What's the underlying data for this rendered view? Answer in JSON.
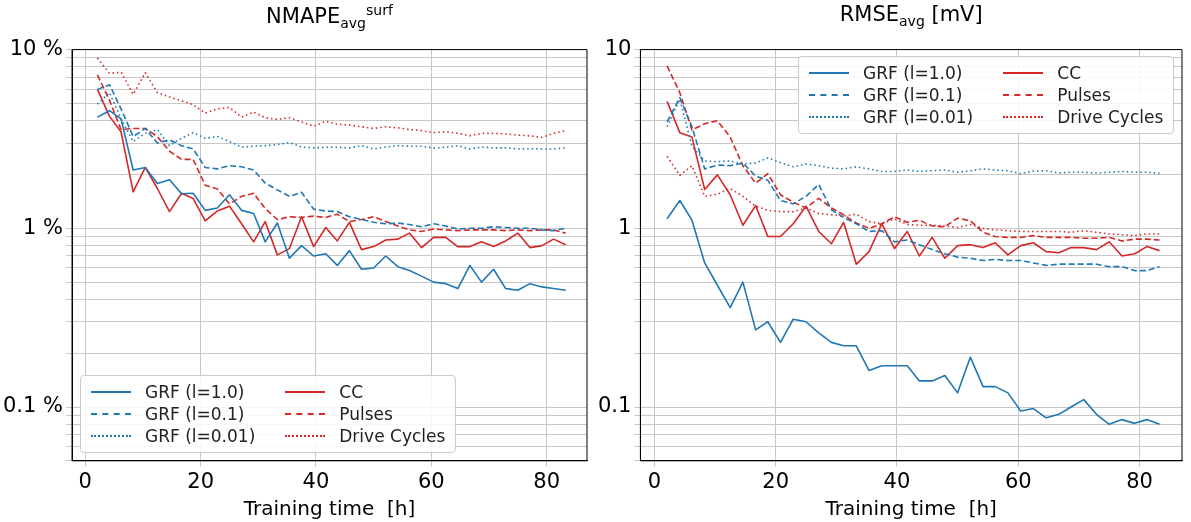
{
  "chart_data": [
    {
      "type": "line",
      "title": "NMAPE$_{avg}$$^{surf}$",
      "xlabel": "Training time  [h]",
      "log": "y",
      "grid": true,
      "legend": "bottom left",
      "x": [
        2.1,
        4.2,
        6.2,
        8.3,
        10.4,
        12.5,
        14.6,
        16.7,
        18.7,
        20.8,
        22.9,
        25.0,
        27.1,
        29.2,
        31.2,
        33.3,
        35.4,
        37.5,
        39.6,
        41.7,
        43.7,
        45.8,
        47.9,
        50.0,
        52.1,
        54.2,
        56.2,
        58.3,
        60.4,
        62.5,
        64.6,
        66.7,
        68.7,
        70.8,
        72.9,
        75.0,
        77.1,
        79.2,
        81.2,
        83.3
      ],
      "xlim": [
        -2.3,
        87
      ],
      "xticks": [
        0,
        20,
        40,
        60,
        80
      ],
      "ylim": [
        0.05,
        10
      ],
      "yticks": [
        {
          "value": 0.05,
          "label": null
        },
        {
          "value": 0.06,
          "label": null
        },
        {
          "value": 0.07,
          "label": null
        },
        {
          "value": 0.08,
          "label": null
        },
        {
          "value": 0.09,
          "label": null
        },
        {
          "value": 0.1,
          "label": "0.1 %"
        },
        {
          "value": 0.2,
          "label": null
        },
        {
          "value": 0.3,
          "label": null
        },
        {
          "value": 0.4,
          "label": null
        },
        {
          "value": 0.5,
          "label": null
        },
        {
          "value": 0.6,
          "label": null
        },
        {
          "value": 0.7,
          "label": null
        },
        {
          "value": 0.8,
          "label": null
        },
        {
          "value": 0.9,
          "label": null
        },
        {
          "value": 1,
          "label": "1 %"
        },
        {
          "value": 2,
          "label": null
        },
        {
          "value": 3,
          "label": null
        },
        {
          "value": 4,
          "label": null
        },
        {
          "value": 5,
          "label": null
        },
        {
          "value": 6,
          "label": null
        },
        {
          "value": 7,
          "label": null
        },
        {
          "value": 8,
          "label": null
        },
        {
          "value": 9,
          "label": null
        },
        {
          "value": 10,
          "label": "10 %"
        }
      ],
      "series": [
        {
          "name": "GRF (l=1.0)",
          "color": "#1f77b4",
          "line_style": "solid",
          "values": [
            4.19,
            4.55,
            4.1,
            2.12,
            2.19,
            1.78,
            1.87,
            1.56,
            1.57,
            1.26,
            1.3,
            1.54,
            1.26,
            1.21,
            0.84,
            1.07,
            0.68,
            0.8,
            0.7,
            0.72,
            0.62,
            0.75,
            0.59,
            0.6,
            0.7,
            0.61,
            0.58,
            0.54,
            0.5,
            0.49,
            0.46,
            0.62,
            0.5,
            0.59,
            0.46,
            0.45,
            0.49,
            0.47,
            0.46,
            0.45
          ]
        },
        {
          "name": "GRF (l=0.1)",
          "color": "#1f77b4",
          "line_style": "dashed",
          "values": [
            5.99,
            6.36,
            4.66,
            3.26,
            3.62,
            3.0,
            3.13,
            2.9,
            2.78,
            2.19,
            2.15,
            2.24,
            2.21,
            2.12,
            1.79,
            1.64,
            1.51,
            1.59,
            1.28,
            1.25,
            1.24,
            1.16,
            1.12,
            1.08,
            1.06,
            1.07,
            1.05,
            1.02,
            1.06,
            1.03,
            0.99,
            1.0,
            1.0,
            1.02,
            1.01,
            1.0,
            1.0,
            0.98,
            0.97,
            1.0
          ]
        },
        {
          "name": "GRF (l=0.01)",
          "color": "#1f77b4",
          "line_style": "dotted",
          "values": [
            4.95,
            5.74,
            4.1,
            3.06,
            3.4,
            3.57,
            2.9,
            3.19,
            3.43,
            3.19,
            3.26,
            3.06,
            2.85,
            2.88,
            2.9,
            2.94,
            3.02,
            2.85,
            2.82,
            2.84,
            2.84,
            2.82,
            2.9,
            2.78,
            2.85,
            2.9,
            2.88,
            2.88,
            2.81,
            2.84,
            2.9,
            2.78,
            2.85,
            2.82,
            2.82,
            2.78,
            2.79,
            2.78,
            2.78,
            2.82
          ]
        },
        {
          "name": "CC",
          "color": "#d62728",
          "line_style": "solid",
          "values": [
            5.99,
            4.23,
            3.47,
            1.6,
            2.19,
            1.67,
            1.24,
            1.57,
            1.47,
            1.1,
            1.25,
            1.33,
            1.06,
            0.84,
            1.09,
            0.71,
            0.77,
            1.16,
            0.79,
            1.01,
            0.85,
            1.08,
            0.76,
            0.79,
            0.86,
            0.87,
            0.94,
            0.78,
            0.89,
            0.89,
            0.79,
            0.79,
            0.84,
            0.79,
            0.85,
            0.94,
            0.78,
            0.8,
            0.87,
            0.81
          ]
        },
        {
          "name": "Pulses",
          "color": "#d62728",
          "line_style": "dashed",
          "values": [
            7.22,
            5.2,
            3.57,
            3.62,
            3.62,
            3.26,
            2.7,
            2.43,
            2.43,
            1.74,
            1.66,
            1.37,
            1.51,
            1.57,
            1.29,
            1.12,
            1.16,
            1.15,
            1.17,
            1.15,
            1.2,
            1.09,
            1.12,
            1.16,
            1.09,
            1.03,
            0.98,
            0.96,
            0.99,
            0.98,
            0.97,
            0.98,
            0.98,
            0.98,
            0.97,
            0.98,
            0.97,
            0.98,
            0.98,
            0.94
          ]
        },
        {
          "name": "Drive Cycles",
          "color": "#d62728",
          "line_style": "dotted",
          "values": [
            8.97,
            7.36,
            7.48,
            5.62,
            7.43,
            5.74,
            5.43,
            5.17,
            4.92,
            4.41,
            4.66,
            4.75,
            4.19,
            4.47,
            4.16,
            4.07,
            4.16,
            3.94,
            3.73,
            3.97,
            3.82,
            3.78,
            3.7,
            3.62,
            3.7,
            3.65,
            3.57,
            3.52,
            3.43,
            3.47,
            3.4,
            3.3,
            3.4,
            3.4,
            3.37,
            3.32,
            3.29,
            3.23,
            3.4,
            3.52
          ]
        }
      ]
    },
    {
      "type": "line",
      "title": "RMSE$_{avg}$ [mV]",
      "xlabel": "Training time  [h]",
      "log": "y",
      "grid": true,
      "legend": "top right",
      "x": [
        2.1,
        4.2,
        6.2,
        8.3,
        10.4,
        12.5,
        14.6,
        16.7,
        18.7,
        20.8,
        22.9,
        25.0,
        27.1,
        29.2,
        31.2,
        33.3,
        35.4,
        37.5,
        39.6,
        41.7,
        43.7,
        45.8,
        47.9,
        50.0,
        52.1,
        54.2,
        56.2,
        58.3,
        60.4,
        62.5,
        64.6,
        66.7,
        68.7,
        70.8,
        72.9,
        75.0,
        77.1,
        79.2,
        81.2,
        83.3
      ],
      "xlim": [
        -2.3,
        87
      ],
      "xticks": [
        0,
        20,
        40,
        60,
        80
      ],
      "ylim": [
        0.05,
        10
      ],
      "yticks": [
        {
          "value": 0.05,
          "label": null
        },
        {
          "value": 0.06,
          "label": null
        },
        {
          "value": 0.07,
          "label": null
        },
        {
          "value": 0.08,
          "label": null
        },
        {
          "value": 0.09,
          "label": null
        },
        0.1,
        {
          "value": 0.2,
          "label": null
        },
        {
          "value": 0.3,
          "label": null
        },
        {
          "value": 0.4,
          "label": null
        },
        {
          "value": 0.5,
          "label": null
        },
        {
          "value": 0.6,
          "label": null
        },
        {
          "value": 0.7,
          "label": null
        },
        {
          "value": 0.8,
          "label": null
        },
        {
          "value": 0.9,
          "label": null
        },
        1,
        {
          "value": 2,
          "label": null
        },
        {
          "value": 3,
          "label": null
        },
        {
          "value": 4,
          "label": null
        },
        {
          "value": 5,
          "label": null
        },
        {
          "value": 6,
          "label": null
        },
        {
          "value": 7,
          "label": null
        },
        {
          "value": 8,
          "label": null
        },
        {
          "value": 9,
          "label": null
        },
        10
      ],
      "series": [
        {
          "name": "GRF (l=1.0)",
          "color": "#1f77b4",
          "line_style": "solid",
          "values": [
            1.13,
            1.43,
            1.11,
            0.64,
            0.48,
            0.36,
            0.5,
            0.27,
            0.3,
            0.23,
            0.31,
            0.3,
            0.26,
            0.23,
            0.22,
            0.22,
            0.16,
            0.17,
            0.17,
            0.17,
            0.14,
            0.14,
            0.15,
            0.12,
            0.19,
            0.13,
            0.13,
            0.12,
            0.095,
            0.098,
            0.087,
            0.091,
            0.1,
            0.11,
            0.091,
            0.08,
            0.085,
            0.081,
            0.085,
            0.08
          ]
        },
        {
          "name": "GRF (l=0.1)",
          "color": "#1f77b4",
          "line_style": "dashed",
          "values": [
            3.94,
            5.38,
            3.7,
            2.15,
            2.26,
            2.24,
            2.32,
            1.96,
            1.86,
            1.43,
            1.37,
            1.51,
            1.76,
            1.27,
            1.15,
            1.06,
            0.96,
            0.97,
            0.84,
            0.86,
            0.81,
            0.76,
            0.72,
            0.69,
            0.68,
            0.66,
            0.67,
            0.66,
            0.66,
            0.64,
            0.62,
            0.63,
            0.63,
            0.63,
            0.63,
            0.61,
            0.61,
            0.58,
            0.58,
            0.61
          ]
        },
        {
          "name": "GRF (l=0.01)",
          "color": "#1f77b4",
          "line_style": "dotted",
          "values": [
            3.7,
            5.28,
            2.88,
            2.38,
            2.36,
            2.38,
            2.29,
            2.32,
            2.48,
            2.33,
            2.21,
            2.29,
            2.24,
            2.17,
            2.15,
            2.21,
            2.15,
            2.08,
            2.08,
            2.12,
            2.08,
            2.1,
            2.12,
            2.06,
            2.1,
            2.15,
            2.12,
            2.1,
            2.02,
            2.09,
            2.1,
            2.04,
            2.06,
            2.06,
            2.04,
            2.06,
            2.08,
            2.06,
            2.06,
            2.03
          ]
        },
        {
          "name": "CC",
          "color": "#d62728",
          "line_style": "solid",
          "values": [
            5.13,
            3.43,
            3.24,
            1.65,
            1.99,
            1.54,
            1.04,
            1.34,
            0.9,
            0.9,
            1.06,
            1.33,
            0.96,
            0.82,
            1.08,
            0.63,
            0.74,
            1.06,
            0.77,
            0.96,
            0.7,
            0.89,
            0.68,
            0.8,
            0.81,
            0.78,
            0.83,
            0.71,
            0.8,
            0.83,
            0.74,
            0.73,
            0.78,
            0.78,
            0.76,
            0.84,
            0.7,
            0.72,
            0.79,
            0.75
          ]
        },
        {
          "name": "Pulses",
          "color": "#d62728",
          "line_style": "dashed",
          "values": [
            8.1,
            5.74,
            3.55,
            3.85,
            4.0,
            3.24,
            2.24,
            1.79,
            2.02,
            1.54,
            1.4,
            1.3,
            1.47,
            1.3,
            1.19,
            1.07,
            1.0,
            1.06,
            1.16,
            1.08,
            1.11,
            1.03,
            1.02,
            1.14,
            1.1,
            0.95,
            0.9,
            0.89,
            0.89,
            0.91,
            0.89,
            0.89,
            0.89,
            0.88,
            0.88,
            0.89,
            0.85,
            0.87,
            0.87,
            0.86
          ]
        },
        {
          "name": "Drive Cycles",
          "color": "#d62728",
          "line_style": "dotted",
          "values": [
            2.52,
            1.98,
            2.24,
            1.51,
            1.55,
            1.67,
            1.51,
            1.33,
            1.26,
            1.24,
            1.24,
            1.3,
            1.21,
            1.19,
            1.17,
            1.2,
            1.09,
            1.06,
            1.13,
            1.05,
            1.04,
            1.04,
            1.03,
            1.01,
            1.05,
            1.0,
            0.98,
            0.97,
            0.96,
            0.96,
            0.96,
            0.96,
            0.95,
            0.97,
            0.95,
            0.93,
            0.92,
            0.91,
            0.93,
            0.93
          ]
        }
      ]
    }
  ]
}
